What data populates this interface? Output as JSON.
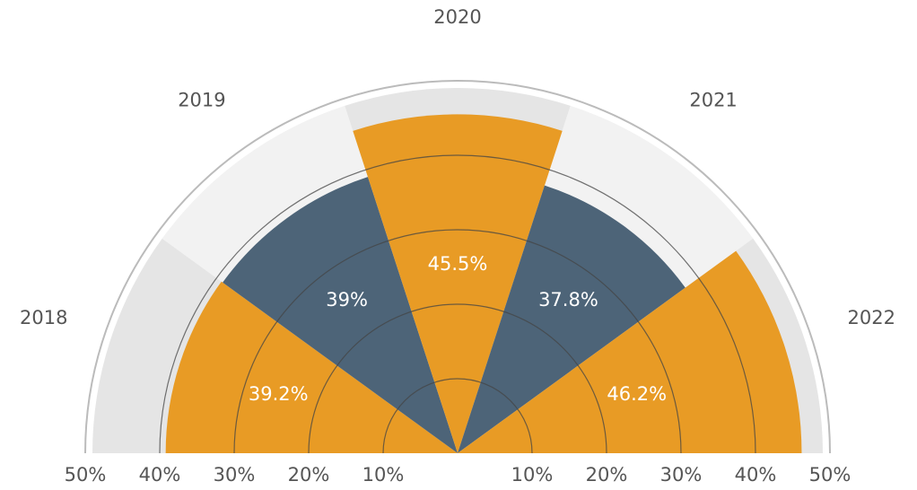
{
  "chart_data": {
    "type": "polar",
    "categories": [
      "2018",
      "2019",
      "2020",
      "2021",
      "2022"
    ],
    "values": [
      39.2,
      39,
      45.5,
      37.8,
      46.2
    ],
    "value_labels": [
      "39.2%",
      "39%",
      "45.5%",
      "37.8%",
      "46.2%"
    ],
    "colors": [
      "#e89b25",
      "#4d6478",
      "#e89b25",
      "#4d6478",
      "#e89b25"
    ],
    "background_colors": [
      "#e5e5e5",
      "#f2f2f2",
      "#e5e5e5",
      "#f2f2f2",
      "#e5e5e5"
    ],
    "rlim": [
      0,
      50
    ],
    "rticks": [
      {
        "value": 10,
        "label": "10%"
      },
      {
        "value": 20,
        "label": "20%"
      },
      {
        "value": 30,
        "label": "30%"
      },
      {
        "value": 40,
        "label": "40%"
      },
      {
        "value": 50,
        "label": "50%"
      }
    ],
    "grid": true
  }
}
